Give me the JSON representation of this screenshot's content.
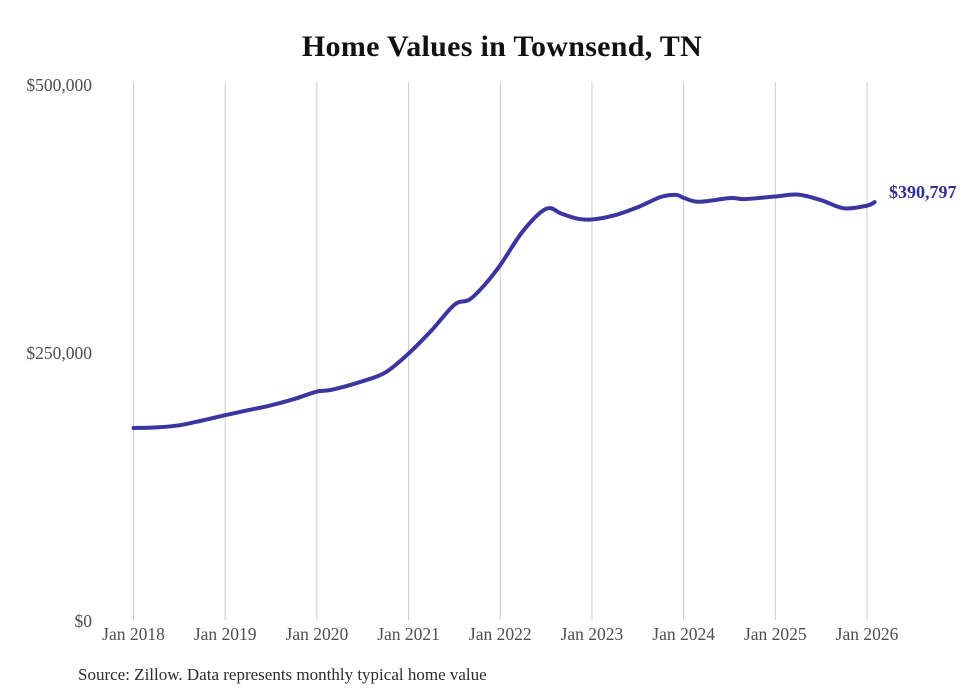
{
  "page": {
    "title": "Home Values in Townsend, TN",
    "end_value_label": "$390,797",
    "source_note": "Source: Zillow. Data represents monthly typical home value"
  },
  "colors": {
    "line": "#3b35a0",
    "end_label": "#32308f",
    "gridline": "#cccccc",
    "axis_label": "#4e4e4e",
    "title": "#111111",
    "source": "#2b2b2b",
    "background": "#ffffff"
  },
  "chart_data": {
    "type": "line",
    "title": "Home Values in Townsend, TN",
    "xlabel": "",
    "ylabel": "",
    "ylim": [
      0,
      500000
    ],
    "x_range": [
      "2018-01",
      "2026-02"
    ],
    "grid": "vertical-gridlines-only",
    "legend": "none",
    "y_ticks": [
      {
        "value": 0,
        "label": "$0"
      },
      {
        "value": 250000,
        "label": "$250,000"
      },
      {
        "value": 500000,
        "label": "$500,000"
      }
    ],
    "x_ticks": [
      "Jan 2018",
      "Jan 2019",
      "Jan 2020",
      "Jan 2021",
      "Jan 2022",
      "Jan 2023",
      "Jan 2024",
      "Jan 2025",
      "Jan 2026"
    ],
    "series": [
      {
        "name": "Monthly typical home value",
        "points": [
          [
            "2018-01",
            180000
          ],
          [
            "2018-04",
            180600
          ],
          [
            "2018-07",
            182600
          ],
          [
            "2018-10",
            187000
          ],
          [
            "2019-01",
            192000
          ],
          [
            "2019-04",
            196600
          ],
          [
            "2019-07",
            201200
          ],
          [
            "2019-10",
            207000
          ],
          [
            "2020-01",
            214000
          ],
          [
            "2020-03",
            215800
          ],
          [
            "2020-07",
            223700
          ],
          [
            "2020-10",
            232000
          ],
          [
            "2021-01",
            249500
          ],
          [
            "2021-04",
            271000
          ],
          [
            "2021-07",
            295000
          ],
          [
            "2021-09",
            300000
          ],
          [
            "2021-11",
            314000
          ],
          [
            "2022-01",
            332000
          ],
          [
            "2022-04",
            364000
          ],
          [
            "2022-07",
            384500
          ],
          [
            "2022-09",
            380000
          ],
          [
            "2022-11",
            375500
          ],
          [
            "2023-01",
            374500
          ],
          [
            "2023-04",
            378500
          ],
          [
            "2023-07",
            386000
          ],
          [
            "2023-10",
            395500
          ],
          [
            "2023-12",
            397500
          ],
          [
            "2024-01",
            394800
          ],
          [
            "2024-03",
            391000
          ],
          [
            "2024-07",
            394500
          ],
          [
            "2024-09",
            393600
          ],
          [
            "2025-01",
            396000
          ],
          [
            "2025-04",
            397800
          ],
          [
            "2025-07",
            392500
          ],
          [
            "2025-10",
            385000
          ],
          [
            "2026-01",
            387500
          ],
          [
            "2026-02",
            390797
          ]
        ]
      }
    ],
    "final_value": 390797,
    "final_value_label": "$390,797"
  }
}
